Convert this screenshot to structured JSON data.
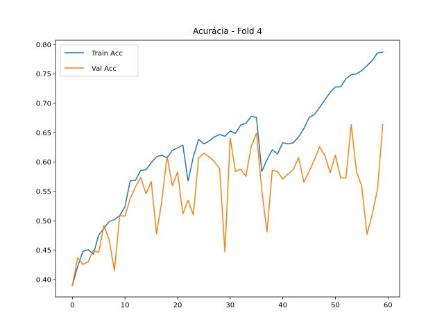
{
  "chart_data": {
    "type": "line",
    "title": "Acurácia - Fold 4",
    "xlabel": "",
    "ylabel": "",
    "xlim": [
      -3.2,
      62.2
    ],
    "ylim": [
      0.3705,
      0.8075
    ],
    "xticks": [
      0,
      10,
      20,
      30,
      40,
      50,
      60
    ],
    "yticks": [
      0.4,
      0.45,
      0.5,
      0.55,
      0.6,
      0.65,
      0.7,
      0.75,
      0.8
    ],
    "grid": false,
    "legend_position": "top-left",
    "x": [
      0,
      1,
      2,
      3,
      4,
      5,
      6,
      7,
      8,
      9,
      10,
      11,
      12,
      13,
      14,
      15,
      16,
      17,
      18,
      19,
      20,
      21,
      22,
      23,
      24,
      25,
      26,
      27,
      28,
      29,
      30,
      31,
      32,
      33,
      34,
      35,
      36,
      37,
      38,
      39,
      40,
      41,
      42,
      43,
      44,
      45,
      46,
      47,
      48,
      49,
      50,
      51,
      52,
      53,
      54,
      55,
      56,
      57,
      58,
      59
    ],
    "series": [
      {
        "name": "Train Acc",
        "color": "#1f77b4",
        "values": [
          0.39,
          0.422,
          0.448,
          0.451,
          0.443,
          0.476,
          0.487,
          0.499,
          0.502,
          0.509,
          0.524,
          0.568,
          0.569,
          0.586,
          0.587,
          0.599,
          0.609,
          0.612,
          0.607,
          0.62,
          0.624,
          0.629,
          0.568,
          0.609,
          0.639,
          0.631,
          0.636,
          0.643,
          0.647,
          0.644,
          0.653,
          0.649,
          0.663,
          0.666,
          0.678,
          0.676,
          0.584,
          0.604,
          0.621,
          0.614,
          0.633,
          0.631,
          0.633,
          0.643,
          0.657,
          0.676,
          0.681,
          0.693,
          0.706,
          0.719,
          0.728,
          0.728,
          0.742,
          0.749,
          0.75,
          0.756,
          0.764,
          0.773,
          0.786,
          0.787
        ]
      },
      {
        "name": "Val Acc",
        "color": "#ff7f0e",
        "values": [
          0.39,
          0.437,
          0.426,
          0.43,
          0.45,
          0.446,
          0.492,
          0.468,
          0.415,
          0.509,
          0.508,
          0.538,
          0.558,
          0.574,
          0.546,
          0.567,
          0.478,
          0.533,
          0.61,
          0.56,
          0.583,
          0.512,
          0.535,
          0.51,
          0.607,
          0.615,
          0.609,
          0.601,
          0.589,
          0.447,
          0.641,
          0.584,
          0.588,
          0.576,
          0.627,
          0.649,
          0.553,
          0.481,
          0.586,
          0.584,
          0.571,
          0.58,
          0.587,
          0.608,
          0.566,
          0.584,
          0.604,
          0.626,
          0.611,
          0.582,
          0.612,
          0.573,
          0.573,
          0.664,
          0.584,
          0.559,
          0.477,
          0.511,
          0.554,
          0.664
        ]
      }
    ]
  }
}
